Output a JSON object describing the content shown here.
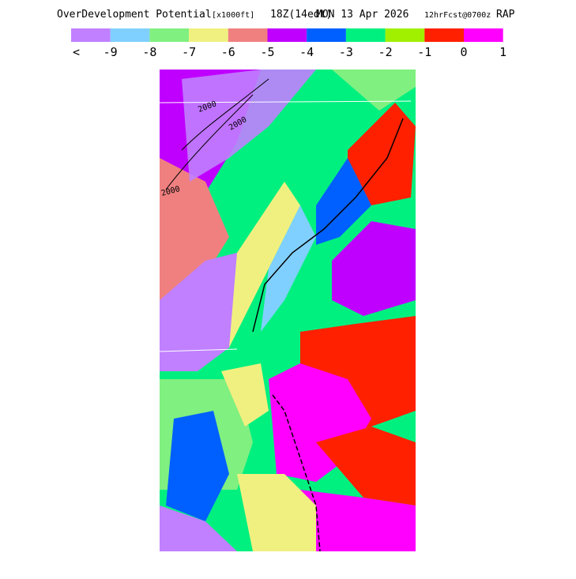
{
  "header": {
    "title": "OverDevelopment Potential",
    "units": "[x1000ft]",
    "valid": "18Z(14edt)",
    "date": "MON 13 Apr 2026",
    "forecast": "12hrFcst@0700z",
    "model": "RAP"
  },
  "legend": {
    "colors": [
      "#c080ff",
      "#80d0ff",
      "#80f080",
      "#f0f080",
      "#f08080",
      "#c000ff",
      "#0060ff",
      "#00f080",
      "#a0f000",
      "#ff2000",
      "#ff00ff"
    ],
    "labels": [
      "<",
      "-9",
      "-8",
      "-7",
      "-6",
      "-5",
      "-4",
      "-3",
      "-2",
      "-1",
      "0",
      "1"
    ]
  },
  "map": {
    "contour_labels": [
      "2000",
      "2000",
      "2000"
    ]
  }
}
